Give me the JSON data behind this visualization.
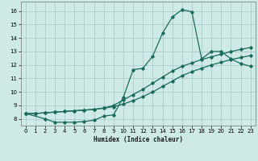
{
  "xlabel": "Humidex (Indice chaleur)",
  "bg_color": "#ceeae6",
  "grid_color": "#aaccc8",
  "line_color": "#1a6b5a",
  "xlim": [
    -0.5,
    23.5
  ],
  "ylim": [
    7.5,
    16.7
  ],
  "xticks": [
    0,
    1,
    2,
    3,
    4,
    5,
    6,
    7,
    8,
    9,
    10,
    11,
    12,
    13,
    14,
    15,
    16,
    17,
    18,
    19,
    20,
    21,
    22,
    23
  ],
  "yticks": [
    8,
    9,
    10,
    11,
    12,
    13,
    14,
    15,
    16
  ],
  "line1_x": [
    0,
    1,
    2,
    3,
    4,
    5,
    6,
    7,
    8,
    9,
    10,
    11,
    12,
    13,
    14,
    15,
    16,
    17,
    18,
    19,
    20,
    21,
    22,
    23
  ],
  "line1_y": [
    8.4,
    8.4,
    8.45,
    8.5,
    8.55,
    8.6,
    8.65,
    8.7,
    8.8,
    8.9,
    9.1,
    9.35,
    9.65,
    10.0,
    10.4,
    10.8,
    11.2,
    11.5,
    11.75,
    12.0,
    12.2,
    12.4,
    12.55,
    12.7
  ],
  "line2_x": [
    0,
    1,
    2,
    3,
    4,
    5,
    6,
    7,
    8,
    9,
    10,
    11,
    12,
    13,
    14,
    15,
    16,
    17,
    18,
    19,
    20,
    21,
    22,
    23
  ],
  "line2_y": [
    8.4,
    8.4,
    8.45,
    8.5,
    8.55,
    8.6,
    8.65,
    8.7,
    8.8,
    9.0,
    9.4,
    9.8,
    10.2,
    10.65,
    11.1,
    11.55,
    11.9,
    12.15,
    12.4,
    12.6,
    12.8,
    13.0,
    13.15,
    13.3
  ],
  "line3_x": [
    0,
    2,
    3,
    4,
    5,
    6,
    7,
    8,
    9,
    10,
    11,
    12,
    13,
    14,
    15,
    16,
    17,
    18,
    19,
    20,
    21,
    22,
    23
  ],
  "line3_y": [
    8.4,
    8.0,
    7.75,
    7.75,
    7.75,
    7.8,
    7.9,
    8.2,
    8.3,
    9.6,
    11.65,
    11.75,
    12.65,
    14.35,
    15.55,
    16.1,
    15.95,
    12.45,
    13.0,
    13.0,
    12.45,
    12.1,
    11.9
  ]
}
